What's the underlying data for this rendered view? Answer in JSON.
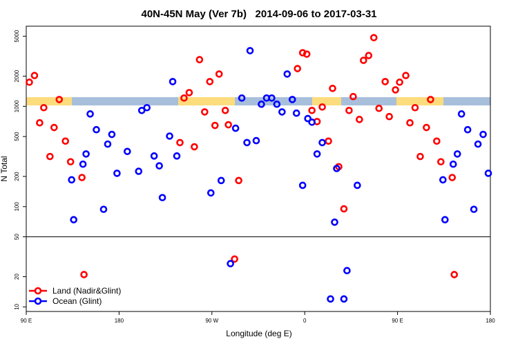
{
  "chart_data": {
    "type": "scatter",
    "title": "40N-45N May (Ver 7b)   2014-09-06 to 2017-03-31",
    "x_label": "Longitude (deg E)",
    "y_label": "N Total",
    "xlim": [
      90,
      540
    ],
    "xticks": [
      {
        "value": 90,
        "label": "90 E"
      },
      {
        "value": 180,
        "label": "180"
      },
      {
        "value": 270,
        "label": "90 W"
      },
      {
        "value": 360,
        "label": "0"
      },
      {
        "value": 450,
        "label": "90 E"
      },
      {
        "value": 540,
        "label": "180"
      }
    ],
    "ylim": [
      9,
      6300
    ],
    "y_scale": "log",
    "yticks": [
      10,
      20,
      50,
      100,
      200,
      500,
      1000,
      2000,
      5000
    ],
    "hline": 50,
    "legend": "bottom-left",
    "series": [
      {
        "name": "Land (Nadir&Glint)",
        "color": "#ff0000",
        "x": [
          93,
          98,
          103,
          107,
          113,
          117,
          122,
          128,
          133,
          144,
          146,
          239,
          243,
          248,
          253,
          258,
          263,
          268,
          273,
          277,
          283,
          286,
          292,
          296,
          353,
          358,
          362,
          367,
          372,
          377,
          383,
          387,
          393,
          398,
          403,
          407,
          413,
          417,
          422,
          427,
          432,
          438,
          442,
          448,
          452,
          458,
          462,
          467,
          472,
          478,
          482,
          488,
          492,
          503,
          505
        ],
        "values": [
          1740,
          2030,
          685,
          970,
          316,
          615,
          1170,
          450,
          280,
          195,
          21,
          435,
          1210,
          1370,
          395,
          2920,
          880,
          1765,
          645,
          2100,
          910,
          655,
          30,
          182,
          2380,
          3420,
          3316,
          910,
          705,
          985,
          450,
          1510,
          250,
          95,
          910,
          1250,
          740,
          2875,
          3210,
          4840,
          955,
          1765,
          790,
          1460,
          1740,
          2030,
          685,
          970,
          316,
          615,
          1170,
          450,
          280,
          195,
          21
        ]
      },
      {
        "name": "Ocean (Glint)",
        "color": "#0000ff",
        "x": [
          134,
          136,
          145,
          148,
          152,
          158,
          165,
          169,
          173,
          178,
          188,
          199,
          202,
          207,
          214,
          219,
          222,
          229,
          232,
          236,
          269,
          279,
          288,
          293,
          299,
          304,
          307,
          313,
          318,
          323,
          328,
          333,
          338,
          343,
          348,
          352,
          358,
          363,
          367,
          372,
          377,
          385,
          389,
          391,
          398,
          401,
          411,
          494,
          496,
          504,
          508,
          512,
          518,
          524,
          528,
          533,
          538
        ],
        "values": [
          185,
          74,
          265,
          335,
          840,
          585,
          94,
          420,
          525,
          215,
          355,
          225,
          910,
          970,
          320,
          255,
          123,
          505,
          1765,
          320,
          137,
          182,
          27,
          605,
          1210,
          435,
          3590,
          455,
          1050,
          1210,
          1210,
          1050,
          880,
          2100,
          1170,
          855,
          163,
          755,
          695,
          335,
          435,
          12,
          70,
          240,
          12,
          23,
          163,
          185,
          74,
          265,
          335,
          840,
          585,
          94,
          420,
          525,
          215
        ]
      }
    ]
  }
}
